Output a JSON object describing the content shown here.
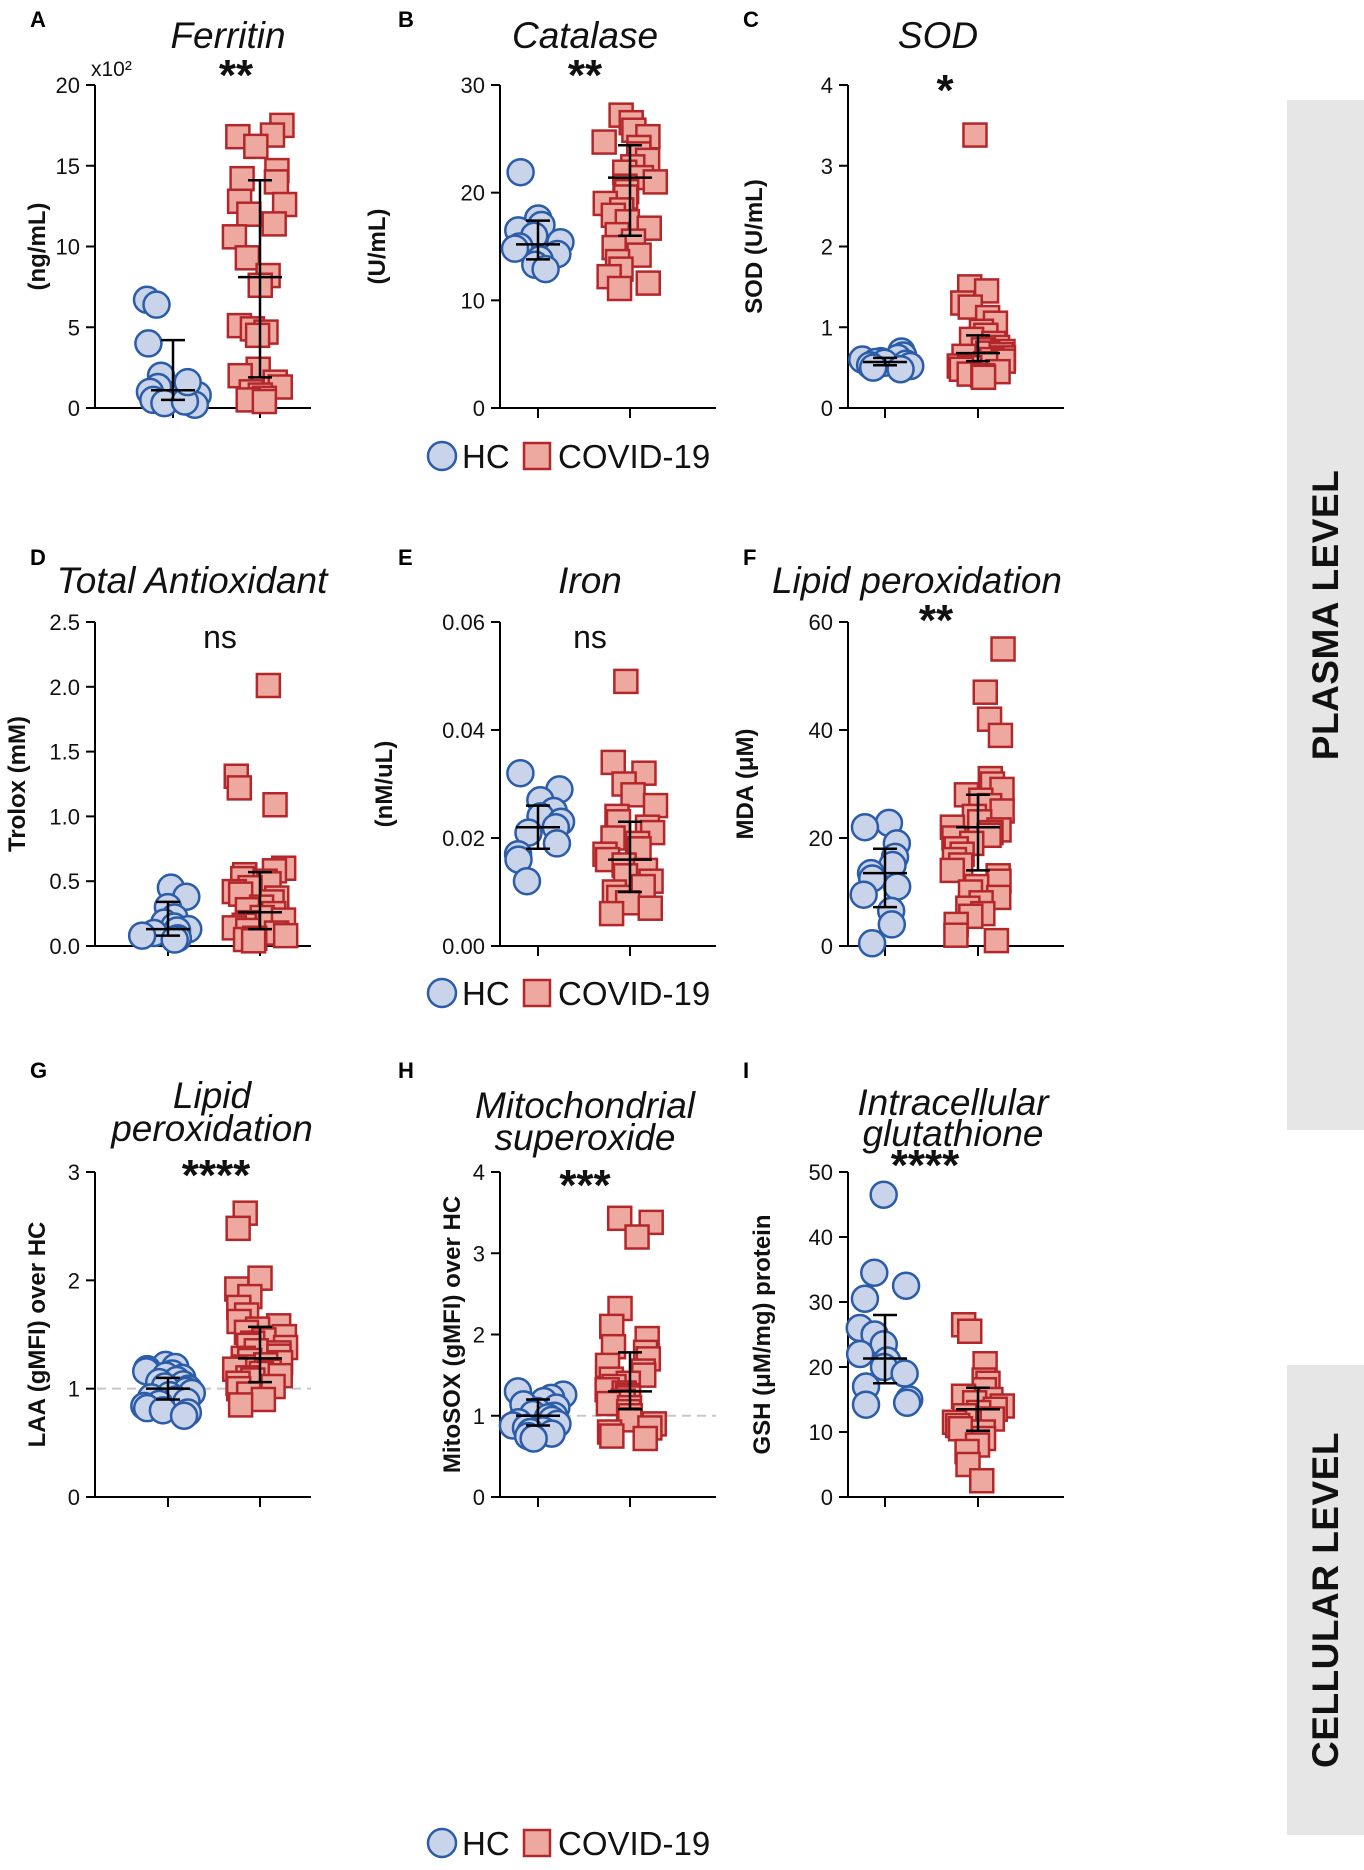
{
  "figure": {
    "side_labels": {
      "plasma": "PLASMA LEVEL",
      "cellular": "CELLULAR LEVEL"
    },
    "legend": {
      "hc": "HC",
      "covid": "COVID-19"
    },
    "colors": {
      "hc_fill": "#c9d3ea",
      "hc_stroke": "#2a5ca8",
      "covid_fill": "#eda9a0",
      "covid_stroke": "#b3262a",
      "band": "#e6e6e6",
      "reference_line": "#c8c8c8",
      "error_bar": "#000000"
    }
  },
  "chart_data": [
    {
      "panel": "A",
      "type": "scatter",
      "title": "Ferritin",
      "ylabel": "(ng/mL)",
      "scale_note": "x10²",
      "significance": "**",
      "ylim": [
        0,
        20
      ],
      "yticks": [
        "0",
        "5",
        "10",
        "15",
        "20"
      ],
      "ytick_values": [
        0,
        5,
        10,
        15,
        20
      ],
      "groups": [
        {
          "name": "HC",
          "values": [
            6.7,
            6.4,
            4.0,
            2.0,
            1.3,
            1.0,
            0.8,
            0.5,
            0.3,
            0.2,
            0.4,
            1.6
          ],
          "median": 1.1,
          "q1": 0.5,
          "q3": 4.2
        },
        {
          "name": "COVID-19",
          "values": [
            17.5,
            16.9,
            16.8,
            16.2,
            14.7,
            14.2,
            14.0,
            12.8,
            12.6,
            12.0,
            11.4,
            10.6,
            9.3,
            8.2,
            7.6,
            5.1,
            4.9,
            4.7,
            4.5,
            2.4,
            2.0,
            1.6,
            1.3,
            1.0,
            0.8,
            0.6,
            0.5,
            0.4
          ],
          "median": 8.1,
          "q1": 1.9,
          "q3": 14.1
        }
      ]
    },
    {
      "panel": "B",
      "type": "scatter",
      "title": "Catalase",
      "ylabel": "(U/mL)",
      "significance": "**",
      "ylim": [
        0,
        30
      ],
      "yticks": [
        "0",
        "10",
        "20",
        "30"
      ],
      "ytick_values": [
        0,
        10,
        20,
        30
      ],
      "groups": [
        {
          "name": "HC",
          "values": [
            21.9,
            17.6,
            17.0,
            16.5,
            16.0,
            15.4,
            15.0,
            14.8,
            14.3,
            13.8,
            13.3,
            12.9
          ],
          "median": 15.2,
          "q1": 13.8,
          "q3": 17.4
        },
        {
          "name": "COVID-19",
          "values": [
            27.2,
            26.5,
            25.8,
            25.2,
            24.7,
            24.2,
            23.6,
            23.0,
            22.4,
            21.9,
            21.4,
            21.0,
            20.6,
            20.1,
            19.6,
            19.0,
            18.4,
            17.9,
            17.3,
            16.7,
            16.1,
            15.5,
            14.9,
            14.2,
            13.6,
            12.9,
            12.2,
            11.6,
            11.1
          ],
          "median": 21.4,
          "q1": 16.0,
          "q3": 24.4
        }
      ]
    },
    {
      "panel": "C",
      "type": "scatter",
      "title": "SOD",
      "ylabel": "SOD (U/mL)",
      "significance": "*",
      "ylim": [
        0,
        4
      ],
      "yticks": [
        "0",
        "1",
        "2",
        "3",
        "4"
      ],
      "ytick_values": [
        0,
        1,
        2,
        3,
        4
      ],
      "groups": [
        {
          "name": "HC",
          "values": [
            0.7,
            0.65,
            0.62,
            0.6,
            0.58,
            0.57,
            0.56,
            0.55,
            0.53,
            0.52,
            0.5,
            0.48
          ],
          "median": 0.57,
          "q1": 0.53,
          "q3": 0.62
        },
        {
          "name": "COVID-19",
          "values": [
            3.38,
            1.5,
            1.45,
            1.3,
            1.25,
            1.12,
            1.05,
            0.95,
            0.9,
            0.85,
            0.8,
            0.75,
            0.72,
            0.7,
            0.68,
            0.66,
            0.64,
            0.62,
            0.6,
            0.58,
            0.55,
            0.52,
            0.5,
            0.48,
            0.45,
            0.42,
            0.4,
            0.38
          ],
          "median": 0.68,
          "q1": 0.58,
          "q3": 0.9
        }
      ]
    },
    {
      "panel": "D",
      "type": "scatter",
      "title": "Total Antioxidant",
      "ylabel": "Trolox (mM)",
      "significance": "ns",
      "ylim": [
        0,
        2.5
      ],
      "yticks": [
        "0.0",
        "0.5",
        "1.0",
        "1.5",
        "2.0",
        "2.5"
      ],
      "ytick_values": [
        0,
        0.5,
        1.0,
        1.5,
        2.0,
        2.5
      ],
      "groups": [
        {
          "name": "HC",
          "values": [
            0.45,
            0.38,
            0.3,
            0.22,
            0.18,
            0.15,
            0.13,
            0.12,
            0.1,
            0.08,
            0.06,
            0.05
          ],
          "median": 0.13,
          "q1": 0.08,
          "q3": 0.34
        },
        {
          "name": "COVID-19",
          "values": [
            2.01,
            1.31,
            1.22,
            1.09,
            0.6,
            0.58,
            0.55,
            0.52,
            0.5,
            0.48,
            0.45,
            0.42,
            0.4,
            0.37,
            0.34,
            0.3,
            0.28,
            0.25,
            0.22,
            0.2,
            0.18,
            0.16,
            0.14,
            0.12,
            0.1,
            0.08,
            0.06,
            0.05,
            0.04
          ],
          "median": 0.26,
          "q1": 0.13,
          "q3": 0.57
        }
      ]
    },
    {
      "panel": "E",
      "type": "scatter",
      "title": "Iron",
      "ylabel": "(nM/uL)",
      "significance": "ns",
      "ylim": [
        0,
        0.06
      ],
      "yticks": [
        "0.00",
        "0.02",
        "0.04",
        "0.06"
      ],
      "ytick_values": [
        0,
        0.02,
        0.04,
        0.06
      ],
      "groups": [
        {
          "name": "HC",
          "values": [
            0.032,
            0.029,
            0.027,
            0.025,
            0.024,
            0.023,
            0.022,
            0.021,
            0.019,
            0.017,
            0.016,
            0.012
          ],
          "median": 0.022,
          "q1": 0.018,
          "q3": 0.026
        },
        {
          "name": "COVID-19",
          "values": [
            0.049,
            0.034,
            0.032,
            0.03,
            0.028,
            0.026,
            0.024,
            0.023,
            0.022,
            0.021,
            0.02,
            0.019,
            0.018,
            0.017,
            0.016,
            0.015,
            0.014,
            0.013,
            0.012,
            0.011,
            0.01,
            0.009,
            0.008,
            0.007,
            0.006
          ],
          "median": 0.016,
          "q1": 0.01,
          "q3": 0.023
        }
      ]
    },
    {
      "panel": "F",
      "type": "scatter",
      "title": "Lipid peroxidation",
      "ylabel": "MDA (μM)",
      "significance": "**",
      "ylim": [
        0,
        60
      ],
      "yticks": [
        "0",
        "20",
        "40",
        "60"
      ],
      "ytick_values": [
        0,
        20,
        40,
        60
      ],
      "groups": [
        {
          "name": "HC",
          "values": [
            22.8,
            22.0,
            19.0,
            16.5,
            15.0,
            13.5,
            12.5,
            11.0,
            9.5,
            6.5,
            4.0,
            0.5
          ],
          "median": 13.5,
          "q1": 7.2,
          "q3": 18.0
        },
        {
          "name": "COVID-19",
          "values": [
            55.0,
            47.0,
            42.0,
            39.0,
            31.0,
            30.0,
            29.0,
            28.0,
            27.0,
            26.0,
            25.0,
            24.0,
            23.0,
            22.0,
            21.5,
            21.0,
            20.5,
            20.0,
            19.0,
            18.0,
            17.0,
            16.0,
            15.0,
            14.0,
            13.0,
            12.0,
            11.0,
            10.0,
            9.0,
            8.0,
            7.0,
            6.0,
            5.5,
            4.0,
            2.0,
            1.0
          ],
          "median": 22.0,
          "q1": 14.0,
          "q3": 28.0
        }
      ]
    },
    {
      "panel": "G",
      "type": "scatter",
      "title": "Lipid peroxidation",
      "ylabel": "LAA (gMFI) over HC",
      "significance": "****",
      "reference_y": 1,
      "ylim": [
        0,
        3
      ],
      "yticks": [
        "0",
        "1",
        "2",
        "3"
      ],
      "ytick_values": [
        0,
        1,
        2,
        3
      ],
      "groups": [
        {
          "name": "HC",
          "values": [
            1.22,
            1.2,
            1.18,
            1.16,
            1.14,
            1.12,
            1.1,
            1.08,
            1.06,
            1.04,
            1.02,
            1.0,
            0.98,
            0.96,
            0.94,
            0.92,
            0.9,
            0.88,
            0.86,
            0.84,
            0.82,
            0.8,
            0.78,
            0.75
          ],
          "median": 1.0,
          "q1": 0.9,
          "q3": 1.1
        },
        {
          "name": "COVID-19",
          "values": [
            2.62,
            2.48,
            2.02,
            1.92,
            1.85,
            1.75,
            1.68,
            1.62,
            1.58,
            1.55,
            1.52,
            1.48,
            1.45,
            1.42,
            1.4,
            1.38,
            1.35,
            1.33,
            1.3,
            1.28,
            1.26,
            1.24,
            1.22,
            1.2,
            1.18,
            1.16,
            1.14,
            1.12,
            1.1,
            1.08,
            1.05,
            1.02,
            1.0,
            0.95,
            0.9,
            0.85
          ],
          "median": 1.28,
          "q1": 1.06,
          "q3": 1.57
        }
      ]
    },
    {
      "panel": "H",
      "type": "scatter",
      "title": "Mitochondrial superoxide",
      "ylabel": "MitoSOX (gMFI) over HC",
      "significance": "***",
      "reference_y": 1,
      "ylim": [
        0,
        4
      ],
      "yticks": [
        "0",
        "1",
        "2",
        "3",
        "4"
      ],
      "ytick_values": [
        0,
        1,
        2,
        3,
        4
      ],
      "groups": [
        {
          "name": "HC",
          "values": [
            1.3,
            1.26,
            1.22,
            1.18,
            1.14,
            1.1,
            1.06,
            1.02,
            1.0,
            0.98,
            0.95,
            0.92,
            0.9,
            0.88,
            0.85,
            0.82,
            0.8,
            0.78,
            0.75,
            0.72
          ],
          "median": 1.0,
          "q1": 0.88,
          "q3": 1.2
        },
        {
          "name": "COVID-19",
          "values": [
            3.43,
            3.38,
            3.2,
            2.32,
            2.1,
            1.95,
            1.85,
            1.78,
            1.7,
            1.62,
            1.55,
            1.5,
            1.45,
            1.4,
            1.36,
            1.32,
            1.28,
            1.25,
            1.22,
            1.18,
            1.15,
            1.1,
            1.05,
            1.0,
            0.95,
            0.9,
            0.85,
            0.8,
            0.75,
            0.72
          ],
          "median": 1.3,
          "q1": 1.08,
          "q3": 1.78
        }
      ]
    },
    {
      "panel": "I",
      "type": "scatter",
      "title": "Intracellular glutathione",
      "ylabel": "GSH (μM/mg) protein",
      "significance": "****",
      "ylim": [
        0,
        50
      ],
      "yticks": [
        "0",
        "10",
        "20",
        "30",
        "40",
        "50"
      ],
      "ytick_values": [
        0,
        10,
        20,
        30,
        40,
        50
      ],
      "groups": [
        {
          "name": "HC",
          "values": [
            46.5,
            34.5,
            32.5,
            30.5,
            26.0,
            25.0,
            23.5,
            22.0,
            21.0,
            20.0,
            19.0,
            17.0,
            15.0,
            14.5,
            14.2
          ],
          "median": 21.3,
          "q1": 17.5,
          "q3": 28.0
        },
        {
          "name": "COVID-19",
          "values": [
            26.5,
            25.5,
            20.5,
            18.0,
            17.5,
            16.5,
            15.5,
            15.0,
            14.5,
            14.0,
            13.5,
            13.0,
            12.5,
            12.0,
            11.5,
            11.0,
            10.5,
            10.0,
            9.0,
            8.0,
            7.0,
            5.0,
            2.5
          ],
          "median": 13.5,
          "q1": 10.2,
          "q3": 16.8
        }
      ]
    }
  ]
}
